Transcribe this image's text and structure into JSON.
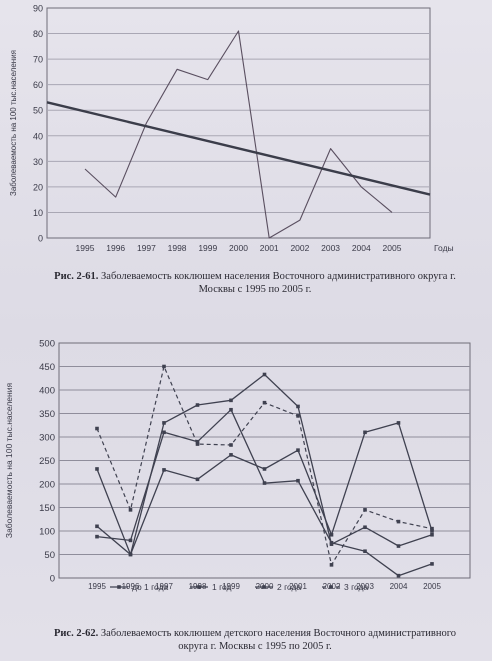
{
  "chart_data": [
    {
      "type": "line",
      "title": "",
      "ylabel": "Заболеваемость на 100 тыс.населения",
      "xlabel": "Годы",
      "ylim": [
        0,
        90
      ],
      "yticks": [
        0,
        10,
        20,
        30,
        40,
        50,
        60,
        70,
        80,
        90
      ],
      "categories": [
        "1995",
        "1996",
        "1997",
        "1998",
        "1999",
        "2000",
        "2001",
        "2002",
        "2003",
        "2004",
        "2005"
      ],
      "series": [
        {
          "values": [
            27,
            16,
            45,
            66,
            62,
            81,
            0,
            7,
            35,
            20,
            10
          ],
          "color": "#5a4f60"
        },
        {
          "style": "trend",
          "values": [
            49.5,
            46.6,
            43.7,
            40.8,
            38.0,
            35.1,
            32.2,
            29.3,
            26.4,
            23.5,
            20.6
          ],
          "color": "#3b3d4a"
        }
      ],
      "grid": true,
      "caption_label": "Рис. 2-61.",
      "caption_text": "Заболеваемость коклюшем населения Восточного административного округа г. Москвы с 1995 по 2005 г."
    },
    {
      "type": "line",
      "title": "",
      "ylabel": "Заболеваемость на 100 тыс.населения",
      "ylim": [
        0,
        500
      ],
      "yticks": [
        0,
        50,
        100,
        150,
        200,
        250,
        300,
        350,
        400,
        450,
        500
      ],
      "categories": [
        "1995",
        "1996",
        "1997",
        "1998",
        "1999",
        "2000",
        "2001",
        "2002",
        "2003",
        "2004",
        "2005"
      ],
      "series": [
        {
          "name": "до 1 года",
          "values": [
            110,
            50,
            230,
            210,
            262,
            232,
            272,
            92,
            310,
            330,
            100
          ]
        },
        {
          "name": "1 год",
          "values": [
            88,
            80,
            310,
            290,
            358,
            202,
            207,
            75,
            57,
            5,
            30
          ]
        },
        {
          "name": "2 года",
          "values": [
            232,
            50,
            330,
            368,
            378,
            433,
            365,
            72,
            108,
            68,
            92
          ]
        },
        {
          "name": "3 года",
          "values": [
            318,
            145,
            450,
            285,
            283,
            373,
            345,
            28,
            145,
            120,
            105
          ]
        }
      ],
      "legend_position": "bottom",
      "grid": true,
      "caption_label": "Рис. 2-62.",
      "caption_text": "Заболеваемость коклюшем детского населения Восточного административного округа г. Москвы с 1995 по 2005 г."
    }
  ]
}
